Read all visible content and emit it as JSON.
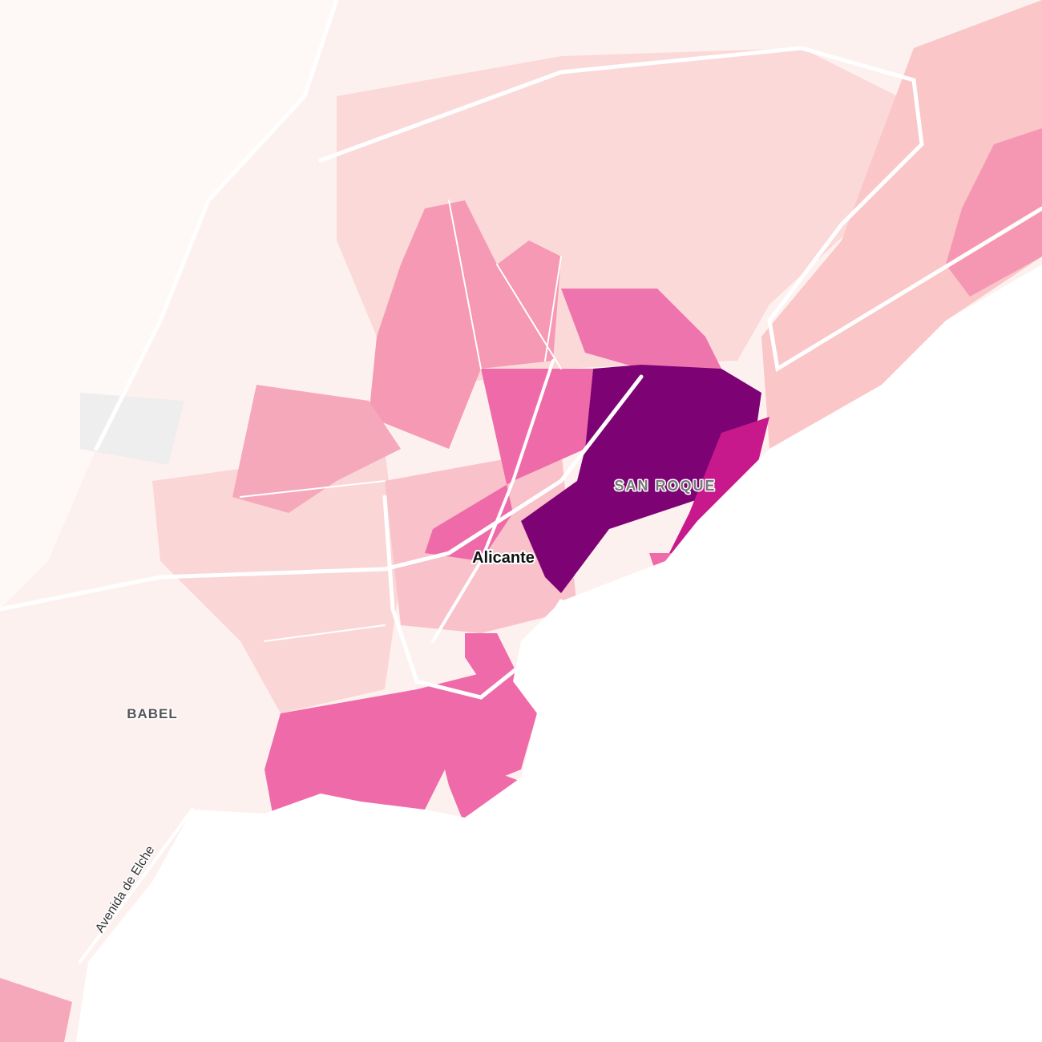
{
  "labels": {
    "city": "Alicante",
    "districts": [
      "SAN ROQUE",
      "BABEL"
    ],
    "street": "Avenida de Elche"
  }
}
